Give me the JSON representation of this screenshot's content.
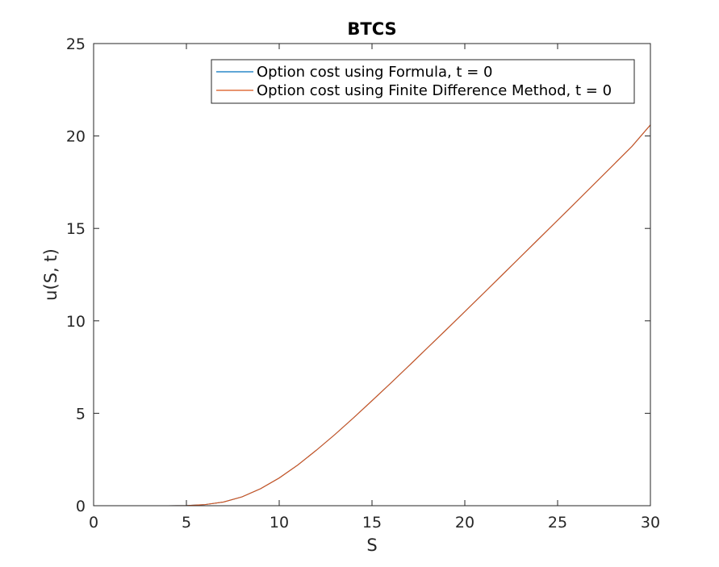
{
  "chart_data": {
    "type": "line",
    "title": "BTCS",
    "xlabel": "S",
    "ylabel": "u(S, t)",
    "xlim": [
      0,
      30
    ],
    "ylim": [
      0,
      25
    ],
    "xticks": [
      0,
      5,
      10,
      15,
      20,
      25,
      30
    ],
    "yticks": [
      0,
      5,
      10,
      15,
      20,
      25
    ],
    "grid": false,
    "legend_position": "top-right",
    "series": [
      {
        "name": "Option cost using Formula, t = 0",
        "color": "#0072BD",
        "x": [
          0,
          1,
          2,
          3,
          4,
          5,
          6,
          7,
          8,
          9,
          10,
          11,
          12,
          13,
          14,
          15,
          16,
          17,
          18,
          19,
          20,
          21,
          22,
          23,
          24,
          25,
          26,
          27,
          28,
          29,
          30
        ],
        "y": [
          0,
          0,
          0,
          0,
          0,
          0.01,
          0.06,
          0.2,
          0.48,
          0.92,
          1.5,
          2.2,
          3.0,
          3.85,
          4.75,
          5.68,
          6.62,
          7.58,
          8.55,
          9.52,
          10.5,
          11.48,
          12.47,
          13.46,
          14.45,
          15.44,
          16.43,
          17.43,
          18.43,
          19.43,
          20.6
        ]
      },
      {
        "name": "Option cost using Finite Difference Method, t = 0",
        "color": "#D95319",
        "x": [
          0,
          1,
          2,
          3,
          4,
          5,
          6,
          7,
          8,
          9,
          10,
          11,
          12,
          13,
          14,
          15,
          16,
          17,
          18,
          19,
          20,
          21,
          22,
          23,
          24,
          25,
          26,
          27,
          28,
          29,
          30
        ],
        "y": [
          0,
          0,
          0,
          0,
          0,
          0.01,
          0.06,
          0.2,
          0.48,
          0.92,
          1.5,
          2.2,
          3.0,
          3.85,
          4.75,
          5.68,
          6.62,
          7.58,
          8.55,
          9.52,
          10.5,
          11.48,
          12.47,
          13.46,
          14.45,
          15.44,
          16.43,
          17.43,
          18.43,
          19.43,
          20.6
        ]
      }
    ]
  }
}
